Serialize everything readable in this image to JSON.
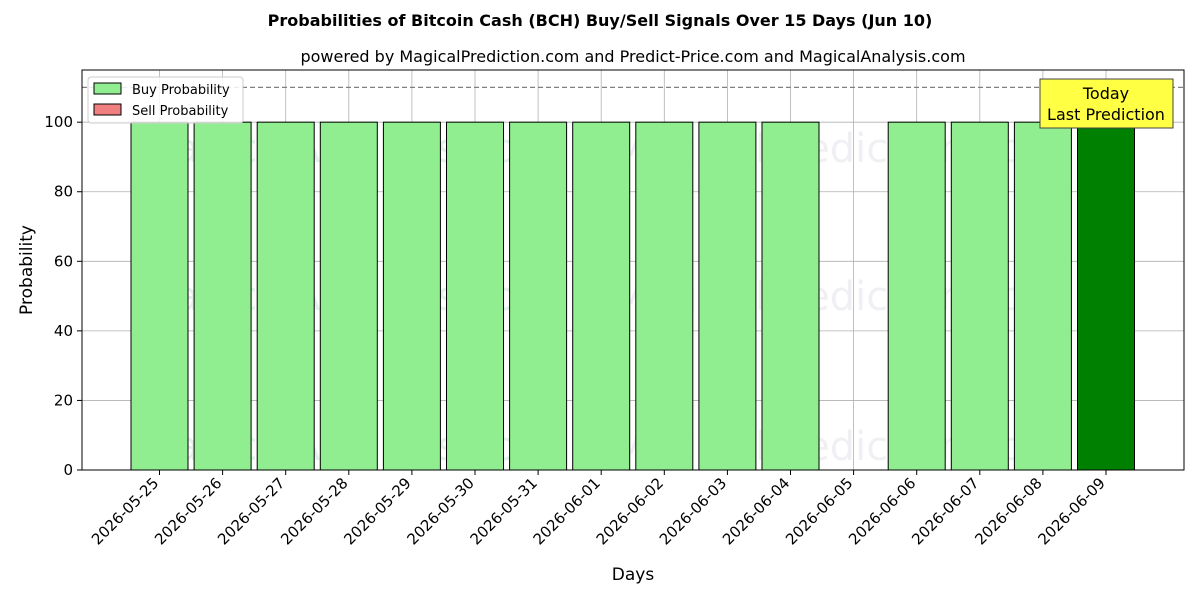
{
  "chart_data": {
    "type": "bar",
    "title": "Probabilities of Bitcoin Cash (BCH) Buy/Sell Signals Over 15 Days (Jun 10)",
    "subtitle": "powered by MagicalPrediction.com and Predict-Price.com and MagicalAnalysis.com",
    "xlabel": "Days",
    "ylabel": "Probability",
    "ylim": [
      0,
      115
    ],
    "yticks": [
      0,
      20,
      40,
      60,
      80,
      100
    ],
    "grid": true,
    "legend_placement": "top-left",
    "reference_line": 110,
    "categories": [
      "2026-05-25",
      "2026-05-26",
      "2026-05-27",
      "2026-05-28",
      "2026-05-29",
      "2026-05-30",
      "2026-05-31",
      "2026-06-01",
      "2026-06-02",
      "2026-06-03",
      "2026-06-04",
      "2026-06-05",
      "2026-06-06",
      "2026-06-07",
      "2026-06-08",
      "2026-06-09"
    ],
    "series": [
      {
        "name": "Buy Probability",
        "color": "#90ee90",
        "values": [
          100,
          100,
          100,
          100,
          100,
          100,
          100,
          100,
          100,
          100,
          100,
          0,
          100,
          100,
          100,
          100
        ]
      },
      {
        "name": "Sell Probability",
        "color": "#f08080",
        "values": [
          0,
          0,
          0,
          0,
          0,
          0,
          0,
          0,
          0,
          0,
          0,
          0,
          0,
          0,
          0,
          0
        ]
      }
    ],
    "highlight": {
      "index": 15,
      "color": "#008000"
    },
    "annotation": {
      "line1": "Today",
      "line2": "Last Prediction",
      "background": "#ffff44"
    },
    "watermarks": [
      "MagicalAnalysis.com",
      "MagicalPrediction.com"
    ]
  }
}
